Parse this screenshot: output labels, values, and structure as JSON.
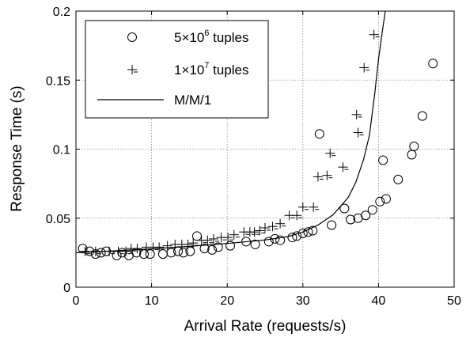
{
  "chart_data": {
    "type": "scatter",
    "xlabel": "Arrival Rate (requests/s)",
    "ylabel": "Response Time (s)",
    "xlim": [
      0,
      50
    ],
    "ylim": [
      0,
      0.2
    ],
    "xticks": [
      0,
      10,
      20,
      30,
      40,
      50
    ],
    "yticks": [
      0,
      0.05,
      0.1,
      0.15,
      0.2
    ],
    "xtick_labels": [
      "0",
      "10",
      "20",
      "30",
      "40",
      "50"
    ],
    "ytick_labels": [
      "0",
      "0.05",
      "0.1",
      "0.15",
      "0.2"
    ],
    "grid": true,
    "legend_position": "top-left",
    "series": [
      {
        "name": "5×10⁶ tuples",
        "legend_base": "5×10",
        "legend_exp": "6",
        "legend_suffix": " tuples",
        "marker": "circle",
        "points": [
          [
            0.9,
            0.028
          ],
          [
            1.8,
            0.026
          ],
          [
            2.6,
            0.024
          ],
          [
            3.3,
            0.025
          ],
          [
            4.0,
            0.026
          ],
          [
            5.4,
            0.023
          ],
          [
            6.1,
            0.025
          ],
          [
            7.0,
            0.023
          ],
          [
            8.0,
            0.025
          ],
          [
            9.0,
            0.024
          ],
          [
            9.8,
            0.024
          ],
          [
            11.5,
            0.024
          ],
          [
            12.6,
            0.025
          ],
          [
            13.5,
            0.026
          ],
          [
            14.2,
            0.025
          ],
          [
            15.1,
            0.026
          ],
          [
            16.0,
            0.037
          ],
          [
            17.0,
            0.028
          ],
          [
            18.0,
            0.027
          ],
          [
            18.8,
            0.029
          ],
          [
            20.4,
            0.03
          ],
          [
            22.5,
            0.033
          ],
          [
            23.7,
            0.031
          ],
          [
            25.5,
            0.033
          ],
          [
            26.3,
            0.035
          ],
          [
            27.0,
            0.034
          ],
          [
            28.6,
            0.036
          ],
          [
            29.2,
            0.037
          ],
          [
            30.0,
            0.039
          ],
          [
            30.7,
            0.04
          ],
          [
            31.3,
            0.041
          ],
          [
            32.2,
            0.111
          ],
          [
            33.8,
            0.045
          ],
          [
            35.5,
            0.057
          ],
          [
            36.3,
            0.049
          ],
          [
            37.3,
            0.05
          ],
          [
            38.3,
            0.052
          ],
          [
            39.2,
            0.056
          ],
          [
            40.2,
            0.062
          ],
          [
            40.6,
            0.092
          ],
          [
            41.0,
            0.064
          ],
          [
            42.6,
            0.078
          ],
          [
            44.4,
            0.096
          ],
          [
            44.7,
            0.102
          ],
          [
            45.8,
            0.124
          ],
          [
            47.2,
            0.162
          ]
        ]
      },
      {
        "name": "1×10⁷ tuples",
        "legend_base": "1×10",
        "legend_exp": "7",
        "legend_suffix": " tuples",
        "marker": "plus",
        "points": [
          [
            1.2,
            0.026
          ],
          [
            2.6,
            0.026
          ],
          [
            4.4,
            0.026
          ],
          [
            5.6,
            0.026
          ],
          [
            6.6,
            0.026
          ],
          [
            7.3,
            0.028
          ],
          [
            8.1,
            0.028
          ],
          [
            9.3,
            0.029
          ],
          [
            10.2,
            0.029
          ],
          [
            11.0,
            0.029
          ],
          [
            12.1,
            0.03
          ],
          [
            13.1,
            0.031
          ],
          [
            14.0,
            0.031
          ],
          [
            14.8,
            0.031
          ],
          [
            15.5,
            0.032
          ],
          [
            16.6,
            0.034
          ],
          [
            17.4,
            0.034
          ],
          [
            18.2,
            0.035
          ],
          [
            19.2,
            0.036
          ],
          [
            20.1,
            0.036
          ],
          [
            20.9,
            0.038
          ],
          [
            22.2,
            0.04
          ],
          [
            23.0,
            0.04
          ],
          [
            23.6,
            0.04
          ],
          [
            24.3,
            0.041
          ],
          [
            25.0,
            0.043
          ],
          [
            26.0,
            0.044
          ],
          [
            27.0,
            0.046
          ],
          [
            28.2,
            0.052
          ],
          [
            29.2,
            0.052
          ],
          [
            30.0,
            0.058
          ],
          [
            31.4,
            0.058
          ],
          [
            32.0,
            0.08
          ],
          [
            33.2,
            0.081
          ],
          [
            33.6,
            0.097
          ],
          [
            35.3,
            0.087
          ],
          [
            37.1,
            0.125
          ],
          [
            37.3,
            0.112
          ],
          [
            38.1,
            0.159
          ],
          [
            39.4,
            0.183
          ]
        ]
      },
      {
        "name": "M/M/1",
        "legend_base": "M/M/1",
        "legend_exp": "",
        "legend_suffix": "",
        "marker": "line",
        "points": [
          [
            0.0,
            0.025
          ],
          [
            5.0,
            0.0263
          ],
          [
            10.0,
            0.0278
          ],
          [
            15.0,
            0.0296
          ],
          [
            20.0,
            0.0317
          ],
          [
            25.0,
            0.0342
          ],
          [
            28.0,
            0.0366
          ],
          [
            30.0,
            0.04
          ],
          [
            32.0,
            0.045
          ],
          [
            34.0,
            0.0525
          ],
          [
            36.0,
            0.065
          ],
          [
            37.0,
            0.076
          ],
          [
            38.0,
            0.092
          ],
          [
            38.8,
            0.11
          ],
          [
            39.5,
            0.14
          ],
          [
            40.0,
            0.165
          ],
          [
            40.5,
            0.185
          ],
          [
            40.9,
            0.2
          ]
        ]
      }
    ]
  }
}
